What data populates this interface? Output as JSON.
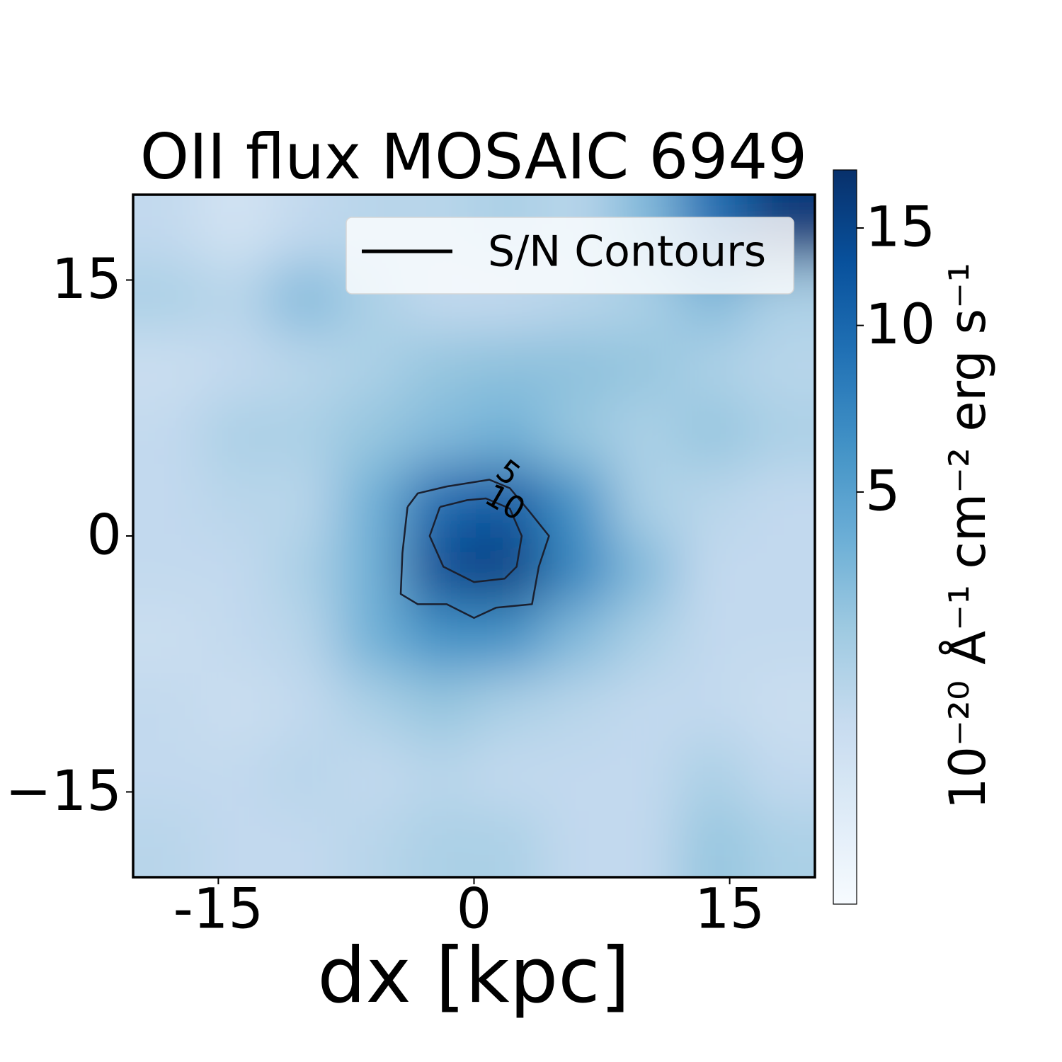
{
  "chart_data": {
    "type": "heatmap",
    "title": "OII flux MOSAIC 6949",
    "x_label": "dx [kpc]",
    "colorbar_label": "10⁻²⁰ Å⁻¹ cm⁻² erg s⁻¹",
    "xlim": [
      -20,
      20
    ],
    "ylim": [
      -20,
      20
    ],
    "xticks": [
      -15,
      0,
      15
    ],
    "yticks": [
      15,
      0,
      {
        "value": -15,
        "label": "−15"
      }
    ],
    "colormap": "Blues",
    "colorbar": {
      "scale": "log",
      "lim": [
        0.9,
        19.1
      ],
      "ticks": [
        5,
        10,
        15
      ]
    },
    "image": [
      [
        2,
        1.6,
        2,
        2.2,
        2.2,
        2.5,
        2.2,
        3.5,
        9,
        17
      ],
      [
        2.5,
        2.2,
        3.5,
        2.5,
        2,
        2,
        2.2,
        2.5,
        3.5,
        2.5
      ],
      [
        1.8,
        2,
        2.2,
        2.5,
        3,
        3.2,
        3.2,
        3,
        2.5,
        2.2
      ],
      [
        2,
        2.5,
        2.5,
        3,
        3.5,
        4,
        3,
        2.5,
        3,
        2.5
      ],
      [
        2,
        2.2,
        2.2,
        4,
        10,
        12,
        6,
        2.5,
        2.2,
        2
      ],
      [
        2,
        2,
        2.5,
        4,
        14,
        16,
        7,
        3.5,
        2,
        2
      ],
      [
        1.8,
        2,
        2.2,
        4,
        6,
        6,
        3.5,
        2.5,
        2,
        2
      ],
      [
        2,
        1.8,
        2,
        2.5,
        3,
        2.5,
        2.2,
        2,
        2,
        1.8
      ],
      [
        2,
        2,
        2.2,
        2,
        2.2,
        2,
        2,
        2,
        2.5,
        2
      ],
      [
        2.2,
        2,
        2,
        2.2,
        2.5,
        2.5,
        2,
        2,
        3,
        2.5
      ]
    ],
    "contour_color": "#1a2030",
    "contours": [
      {
        "level": 5,
        "x": [
          -3.9,
          -3.3,
          -1.6,
          0.9,
          2.1,
          3.2,
          4.4,
          3.8,
          3.4,
          1.3,
          0,
          -1.6,
          -3.3,
          -4.3,
          -4.2,
          -3.9
        ],
        "y": [
          1.7,
          2.5,
          2.9,
          3.3,
          2.8,
          1.5,
          0,
          -1.8,
          -4.0,
          -4.2,
          -4.8,
          -4.0,
          -4.0,
          -3.4,
          -1.0,
          1.7
        ]
      },
      {
        "level": 10,
        "x": [
          -2.0,
          -0.4,
          0.7,
          2.1,
          2.8,
          2.5,
          1.8,
          0,
          -1.8,
          -2.6,
          -2.0
        ],
        "y": [
          1.7,
          2.1,
          2.2,
          1.6,
          0,
          -1.8,
          -2.5,
          -2.7,
          -1.8,
          0,
          1.7
        ]
      }
    ],
    "legend": {
      "label": "S/N Contours",
      "loc": "upper right",
      "color": "#000000"
    }
  }
}
